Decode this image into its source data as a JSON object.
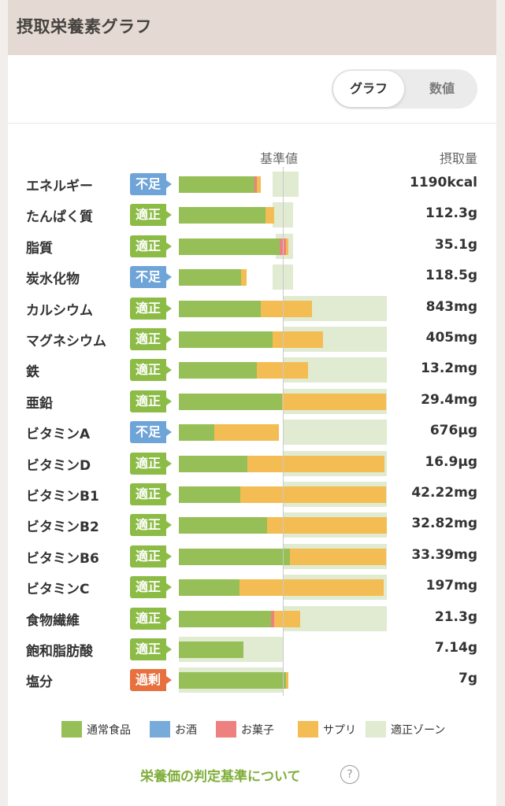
{
  "header": {
    "title": "摂取栄養素グラフ"
  },
  "view_toggle": {
    "graph_label": "グラフ",
    "number_label": "数値",
    "selected": "グラフ"
  },
  "columns": {
    "reference_label": "基準値",
    "intake_label": "摂取量"
  },
  "status_colors": {
    "適正": "#8cbb46",
    "不足": "#6fa4d9",
    "過剰": "#e7703f"
  },
  "legend": [
    {
      "label": "通常食品",
      "color": "#97bf57"
    },
    {
      "label": "お酒",
      "color": "#77acda"
    },
    {
      "label": "お菓子",
      "color": "#ee8080"
    },
    {
      "label": "サプリ",
      "color": "#f3bd53"
    },
    {
      "label": "適正ゾーン",
      "color": "#e0ebd2"
    }
  ],
  "footer": {
    "link_text": "栄養価の判定基準について",
    "help_icon": "question-circle-icon"
  },
  "chart_data": {
    "type": "bar",
    "orientation": "horizontal",
    "stacked": true,
    "reference_label": "基準値",
    "value_label": "摂取量",
    "scale_note": "percent of reference value (基準値 = 100)",
    "series": [
      {
        "name": "通常食品",
        "color": "#97bf57"
      },
      {
        "name": "お酒",
        "color": "#77acda"
      },
      {
        "name": "お菓子",
        "color": "#ee8080"
      },
      {
        "name": "サプリ",
        "color": "#f3bd53"
      },
      {
        "name": "適正ゾーン",
        "color": "#e0ebd2"
      }
    ],
    "rows": [
      {
        "name": "エネルギー",
        "status": "不足",
        "value": "1190kcal",
        "food": 73,
        "alcohol": 0,
        "snack": 2,
        "supplement": 4,
        "zone": [
          90,
          115
        ]
      },
      {
        "name": "たんぱく質",
        "status": "適正",
        "value": "112.3g",
        "food": 83,
        "alcohol": 0,
        "snack": 0,
        "supplement": 9,
        "zone": [
          90,
          110
        ]
      },
      {
        "name": "脂質",
        "status": "適正",
        "value": "35.1g",
        "food": 97,
        "alcohol": 0,
        "snack": 6,
        "supplement": 2,
        "zone": [
          93,
          110
        ]
      },
      {
        "name": "炭水化物",
        "status": "不足",
        "value": "118.5g",
        "food": 60,
        "alcohol": 0,
        "snack": 0,
        "supplement": 5,
        "zone": [
          90,
          110
        ]
      },
      {
        "name": "カルシウム",
        "status": "適正",
        "value": "843mg",
        "food": 79,
        "alcohol": 0,
        "snack": 0,
        "supplement": 49,
        "zone": [
          100,
          200
        ]
      },
      {
        "name": "マグネシウム",
        "status": "適正",
        "value": "405mg",
        "food": 90,
        "alcohol": 0,
        "snack": 0,
        "supplement": 49,
        "zone": [
          100,
          200
        ]
      },
      {
        "name": "鉄",
        "status": "適正",
        "value": "13.2mg",
        "food": 75,
        "alcohol": 0,
        "snack": 0,
        "supplement": 49,
        "zone": [
          100,
          200
        ]
      },
      {
        "name": "亜鉛",
        "status": "適正",
        "value": "29.4mg",
        "food": 99,
        "alcohol": 0,
        "snack": 0,
        "supplement": 100,
        "zone": [
          100,
          200
        ]
      },
      {
        "name": "ビタミンA",
        "status": "不足",
        "value": "676μg",
        "food": 34,
        "alcohol": 0,
        "snack": 0,
        "supplement": 62,
        "zone": [
          100,
          200
        ]
      },
      {
        "name": "ビタミンD",
        "status": "適正",
        "value": "16.9μg",
        "food": 66,
        "alcohol": 0,
        "snack": 0,
        "supplement": 132,
        "zone": [
          100,
          200
        ]
      },
      {
        "name": "ビタミンB1",
        "status": "適正",
        "value": "42.22mg",
        "food": 59,
        "alcohol": 0,
        "snack": 0,
        "supplement": 140,
        "zone": [
          100,
          200
        ]
      },
      {
        "name": "ビタミンB2",
        "status": "適正",
        "value": "32.82mg",
        "food": 85,
        "alcohol": 0,
        "snack": 0,
        "supplement": 115,
        "zone": [
          100,
          200
        ]
      },
      {
        "name": "ビタミンB6",
        "status": "適正",
        "value": "33.39mg",
        "food": 107,
        "alcohol": 0,
        "snack": 0,
        "supplement": 92,
        "zone": [
          100,
          200
        ]
      },
      {
        "name": "ビタミンC",
        "status": "適正",
        "value": "197mg",
        "food": 58,
        "alcohol": 0,
        "snack": 0,
        "supplement": 139,
        "zone": [
          100,
          200
        ]
      },
      {
        "name": "食物繊維",
        "status": "適正",
        "value": "21.3g",
        "food": 89,
        "alcohol": 0,
        "snack": 3,
        "supplement": 25,
        "zone": [
          100,
          200
        ]
      },
      {
        "name": "飽和脂肪酸",
        "status": "適正",
        "value": "7.14g",
        "food": 62,
        "alcohol": 0,
        "snack": 0,
        "supplement": 0,
        "zone": [
          0,
          100
        ]
      },
      {
        "name": "塩分",
        "status": "過剰",
        "value": "7g",
        "food": 103,
        "alcohol": 0,
        "snack": 0,
        "supplement": 2,
        "zone": [
          0,
          100
        ]
      }
    ]
  }
}
